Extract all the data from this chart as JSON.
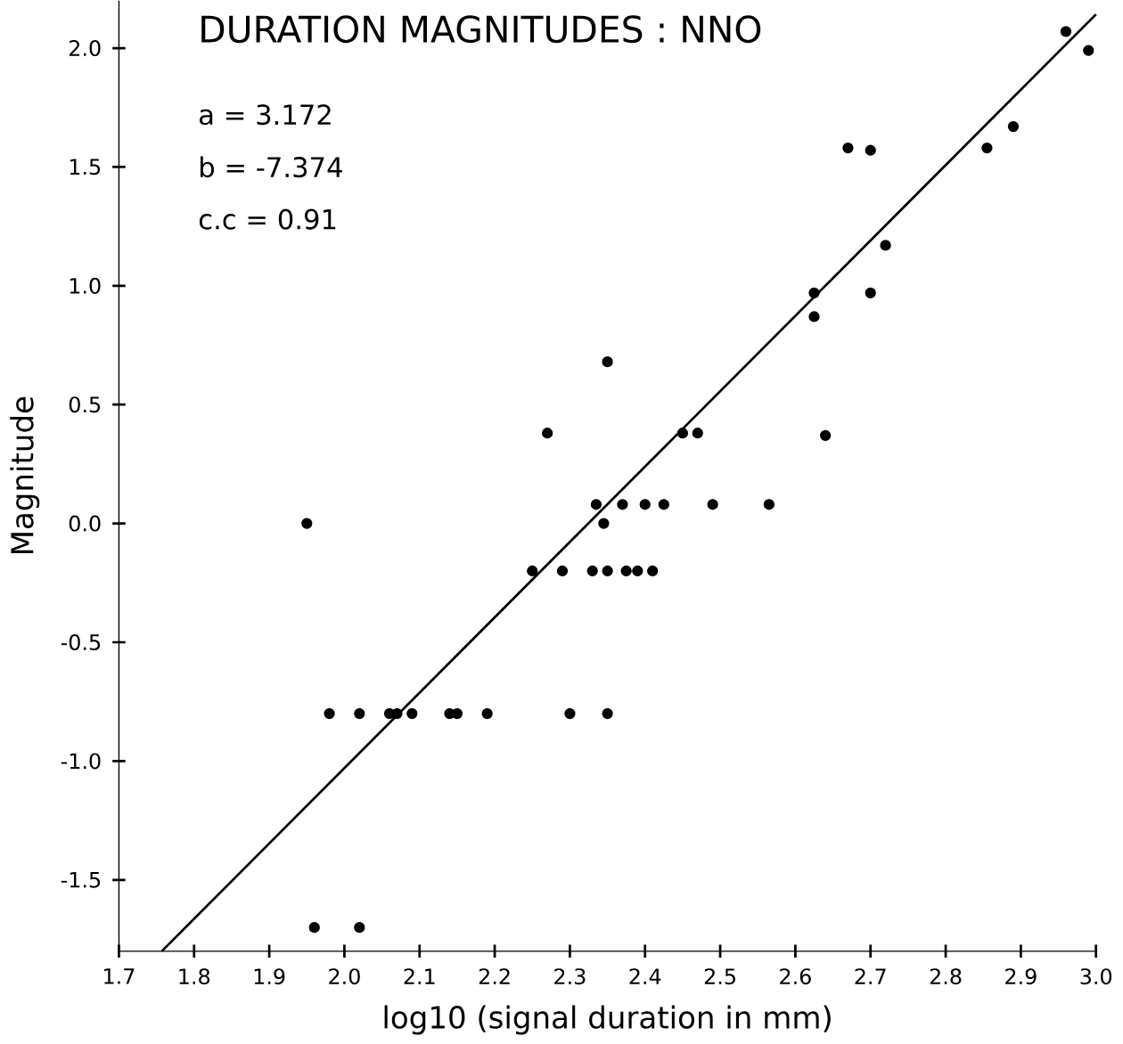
{
  "chart_data": {
    "type": "scatter",
    "title": "DURATION MAGNITUDES : NNO",
    "xlabel": "log10 (signal duration in mm)",
    "ylabel": "Magnitude",
    "annotations": [
      "a = 3.172",
      "b = -7.374",
      "c.c = 0.91"
    ],
    "xlim": [
      1.7,
      3.0
    ],
    "ylim": [
      -1.8,
      2.2
    ],
    "xticks": [
      1.7,
      1.8,
      1.9,
      {
        "value": 2.0,
        "label": "2.0"
      },
      2.1,
      2.2,
      2.3,
      2.4,
      2.5,
      2.6,
      2.7,
      2.8,
      2.9,
      {
        "value": 3.0,
        "label": "3.0"
      }
    ],
    "yticks": [
      -1.5,
      {
        "value": -1.0,
        "label": "-1.0"
      },
      -0.5,
      {
        "value": 0.0,
        "label": "0.0"
      },
      0.5,
      {
        "value": 1.0,
        "label": "1.0"
      },
      1.5,
      {
        "value": 2.0,
        "label": "2.0"
      }
    ],
    "grid": false,
    "series": [
      {
        "color": "#000000",
        "marker": "circle",
        "x": [
          1.95,
          1.96,
          2.02,
          2.335,
          2.37,
          2.4,
          2.425,
          2.49,
          2.565,
          2.345,
          2.25,
          2.29,
          2.33,
          2.35,
          2.375,
          2.39,
          2.41,
          1.98,
          2.02,
          2.06,
          2.07,
          2.09,
          2.14,
          2.15,
          2.19,
          2.3,
          2.35,
          2.96,
          2.99,
          2.855,
          2.89,
          2.67,
          2.7,
          2.72,
          2.625,
          2.7,
          2.625,
          2.35,
          2.27,
          2.45,
          2.47,
          2.64
        ],
        "values": [
          0.0,
          -1.7,
          -1.7,
          0.08,
          0.08,
          0.08,
          0.08,
          0.08,
          0.08,
          0.0,
          -0.2,
          -0.2,
          -0.2,
          -0.2,
          -0.2,
          -0.2,
          -0.2,
          -0.8,
          -0.8,
          -0.8,
          -0.8,
          -0.8,
          -0.8,
          -0.8,
          -0.8,
          -0.8,
          -0.8,
          2.07,
          1.99,
          1.58,
          1.67,
          1.58,
          1.57,
          1.17,
          0.97,
          0.97,
          0.87,
          0.68,
          0.38,
          0.38,
          0.38,
          0.37
        ]
      },
      {
        "type": "line",
        "color": "#000000",
        "marker": "none",
        "line_style": "solid",
        "x": [
          1.757,
          3.0
        ],
        "values": [
          -1.8,
          2.142
        ]
      }
    ]
  }
}
